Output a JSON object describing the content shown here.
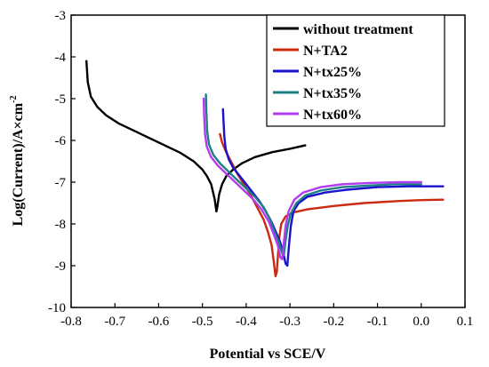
{
  "chart_data": {
    "type": "line",
    "xlabel": "Potential vs SCE/V",
    "ylabel": "Log(Current)/A×cm",
    "ylabel_sup": "-2",
    "xlim": [
      -0.8,
      0.1
    ],
    "ylim": [
      -10,
      -3
    ],
    "x_ticks": [
      "-0.8",
      "-0.7",
      "-0.6",
      "-0.5",
      "-0.4",
      "-0.3",
      "-0.2",
      "-0.1",
      "0.0",
      "0.1"
    ],
    "x_tick_values": [
      -0.8,
      -0.7,
      -0.6,
      -0.5,
      -0.4,
      -0.3,
      -0.2,
      -0.1,
      0.0,
      0.1
    ],
    "y_ticks": [
      "-10",
      "-9",
      "-8",
      "-7",
      "-6",
      "-5",
      "-4",
      "-3"
    ],
    "y_tick_values": [
      -10,
      -9,
      -8,
      -7,
      -6,
      -5,
      -4,
      -3
    ],
    "grid": false,
    "legend_position": "top-right",
    "series": [
      {
        "name": "without treatment",
        "color": "#000000",
        "x": [
          -0.765,
          -0.762,
          -0.755,
          -0.74,
          -0.72,
          -0.69,
          -0.65,
          -0.6,
          -0.55,
          -0.52,
          -0.5,
          -0.49,
          -0.48,
          -0.472,
          -0.468,
          -0.466,
          -0.462,
          -0.455,
          -0.445,
          -0.43,
          -0.41,
          -0.38,
          -0.34,
          -0.3,
          -0.265
        ],
        "y": [
          -4.1,
          -4.6,
          -4.95,
          -5.2,
          -5.4,
          -5.6,
          -5.8,
          -6.05,
          -6.3,
          -6.5,
          -6.7,
          -6.85,
          -7.05,
          -7.4,
          -7.7,
          -7.6,
          -7.3,
          -7.05,
          -6.85,
          -6.7,
          -6.55,
          -6.4,
          -6.28,
          -6.2,
          -6.12
        ]
      },
      {
        "name": "N+TA2",
        "color": "#cc2a0e",
        "x": [
          -0.46,
          -0.455,
          -0.445,
          -0.435,
          -0.42,
          -0.405,
          -0.39,
          -0.375,
          -0.36,
          -0.35,
          -0.342,
          -0.337,
          -0.333,
          -0.33,
          -0.327,
          -0.324,
          -0.32,
          -0.31,
          -0.29,
          -0.26,
          -0.2,
          -0.13,
          -0.05,
          0.0,
          0.05
        ],
        "y": [
          -5.85,
          -6.05,
          -6.3,
          -6.5,
          -6.8,
          -7.05,
          -7.3,
          -7.6,
          -7.9,
          -8.2,
          -8.5,
          -8.9,
          -9.25,
          -9.15,
          -8.7,
          -8.3,
          -8.0,
          -7.82,
          -7.72,
          -7.65,
          -7.57,
          -7.5,
          -7.45,
          -7.43,
          -7.42
        ]
      },
      {
        "name": "N+tx25%",
        "color": "#1a10d0",
        "x": [
          -0.453,
          -0.452,
          -0.45,
          -0.447,
          -0.44,
          -0.43,
          -0.415,
          -0.4,
          -0.385,
          -0.37,
          -0.355,
          -0.342,
          -0.332,
          -0.322,
          -0.315,
          -0.31,
          -0.306,
          -0.302,
          -0.298,
          -0.292,
          -0.28,
          -0.26,
          -0.22,
          -0.17,
          -0.1,
          -0.03,
          0.05
        ],
        "y": [
          -5.25,
          -5.5,
          -5.9,
          -6.2,
          -6.45,
          -6.65,
          -6.85,
          -7.05,
          -7.25,
          -7.45,
          -7.7,
          -7.95,
          -8.2,
          -8.45,
          -8.7,
          -8.95,
          -9.0,
          -8.5,
          -8.05,
          -7.7,
          -7.5,
          -7.35,
          -7.25,
          -7.18,
          -7.12,
          -7.1,
          -7.1
        ]
      },
      {
        "name": "N+tx35%",
        "color": "#1e7f85",
        "x": [
          -0.492,
          -0.491,
          -0.489,
          -0.485,
          -0.475,
          -0.46,
          -0.44,
          -0.42,
          -0.4,
          -0.38,
          -0.36,
          -0.345,
          -0.335,
          -0.325,
          -0.318,
          -0.314,
          -0.31,
          -0.305,
          -0.298,
          -0.285,
          -0.265,
          -0.23,
          -0.18,
          -0.12,
          -0.06,
          0.0
        ],
        "y": [
          -4.9,
          -5.3,
          -5.8,
          -6.1,
          -6.35,
          -6.55,
          -6.75,
          -6.95,
          -7.15,
          -7.35,
          -7.6,
          -7.9,
          -8.2,
          -8.45,
          -8.7,
          -8.75,
          -8.4,
          -8.05,
          -7.75,
          -7.5,
          -7.32,
          -7.2,
          -7.12,
          -7.08,
          -7.05,
          -7.05
        ]
      },
      {
        "name": "N+tx60%",
        "color": "#b23cf0",
        "x": [
          -0.497,
          -0.496,
          -0.494,
          -0.49,
          -0.48,
          -0.465,
          -0.445,
          -0.425,
          -0.405,
          -0.385,
          -0.365,
          -0.348,
          -0.337,
          -0.328,
          -0.322,
          -0.318,
          -0.314,
          -0.31,
          -0.303,
          -0.29,
          -0.27,
          -0.23,
          -0.18,
          -0.12,
          -0.05,
          0.0
        ],
        "y": [
          -5.0,
          -5.4,
          -5.85,
          -6.15,
          -6.4,
          -6.6,
          -6.8,
          -7.0,
          -7.2,
          -7.4,
          -7.65,
          -7.95,
          -8.25,
          -8.5,
          -8.8,
          -8.85,
          -8.45,
          -8.05,
          -7.7,
          -7.42,
          -7.25,
          -7.12,
          -7.05,
          -7.02,
          -7.0,
          -7.0
        ]
      }
    ]
  }
}
